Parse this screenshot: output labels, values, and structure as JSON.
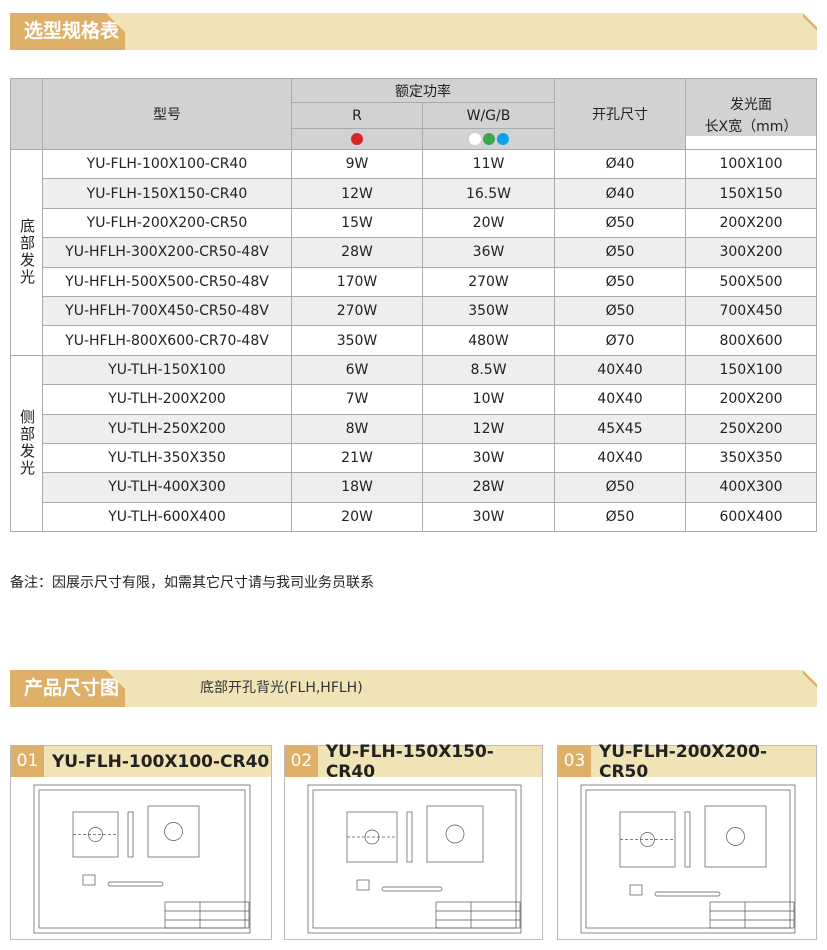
{
  "section1": {
    "title": "选型规格表"
  },
  "table": {
    "headers": {
      "model": "型号",
      "power": "额定功率",
      "r": "R",
      "wgb": "W/G/B",
      "hole": "开孔尺寸",
      "area": "发光面",
      "area_unit": "长X宽（mm）"
    },
    "dot_colors": {
      "r": [
        "#d7262e"
      ],
      "wgb": [
        "#ffffff",
        "#3aaa49",
        "#0ea3e6"
      ]
    },
    "groups": [
      {
        "label": "底部发光",
        "rows": [
          [
            "YU-FLH-100X100-CR40",
            "9W",
            "11W",
            "Ø40",
            "100X100"
          ],
          [
            "YU-FLH-150X150-CR40",
            "12W",
            "16.5W",
            "Ø40",
            "150X150"
          ],
          [
            "YU-FLH-200X200-CR50",
            "15W",
            "20W",
            "Ø50",
            "200X200"
          ],
          [
            "YU-HFLH-300X200-CR50-48V",
            "28W",
            "36W",
            "Ø50",
            "300X200"
          ],
          [
            "YU-HFLH-500X500-CR50-48V",
            "170W",
            "270W",
            "Ø50",
            "500X500"
          ],
          [
            "YU-HFLH-700X450-CR50-48V",
            "270W",
            "350W",
            "Ø50",
            "700X450"
          ],
          [
            "YU-HFLH-800X600-CR70-48V",
            "350W",
            "480W",
            "Ø70",
            "800X600"
          ]
        ]
      },
      {
        "label": "侧部发光",
        "rows": [
          [
            "YU-TLH-150X100",
            "6W",
            "8.5W",
            "40X40",
            "150X100"
          ],
          [
            "YU-TLH-200X200",
            "7W",
            "10W",
            "40X40",
            "200X200"
          ],
          [
            "YU-TLH-250X200",
            "8W",
            "12W",
            "45X45",
            "250X200"
          ],
          [
            "YU-TLH-350X350",
            "21W",
            "30W",
            "40X40",
            "350X350"
          ],
          [
            "YU-TLH-400X300",
            "18W",
            "28W",
            "Ø50",
            "400X300"
          ],
          [
            "YU-TLH-600X400",
            "20W",
            "30W",
            "Ø50",
            "600X400"
          ]
        ]
      }
    ]
  },
  "note": "备注：因展示尺寸有限，如需其它尺寸请与我司业务员联系",
  "section2": {
    "title": "产品尺寸图",
    "subtitle": "底部开孔背光(FLH,HFLH)"
  },
  "cards": [
    {
      "num": "01",
      "title": "YU-FLH-100X100-CR40"
    },
    {
      "num": "02",
      "title": "YU-FLH-150X150-CR40"
    },
    {
      "num": "03",
      "title": "YU-FLH-200X200-CR50"
    }
  ]
}
